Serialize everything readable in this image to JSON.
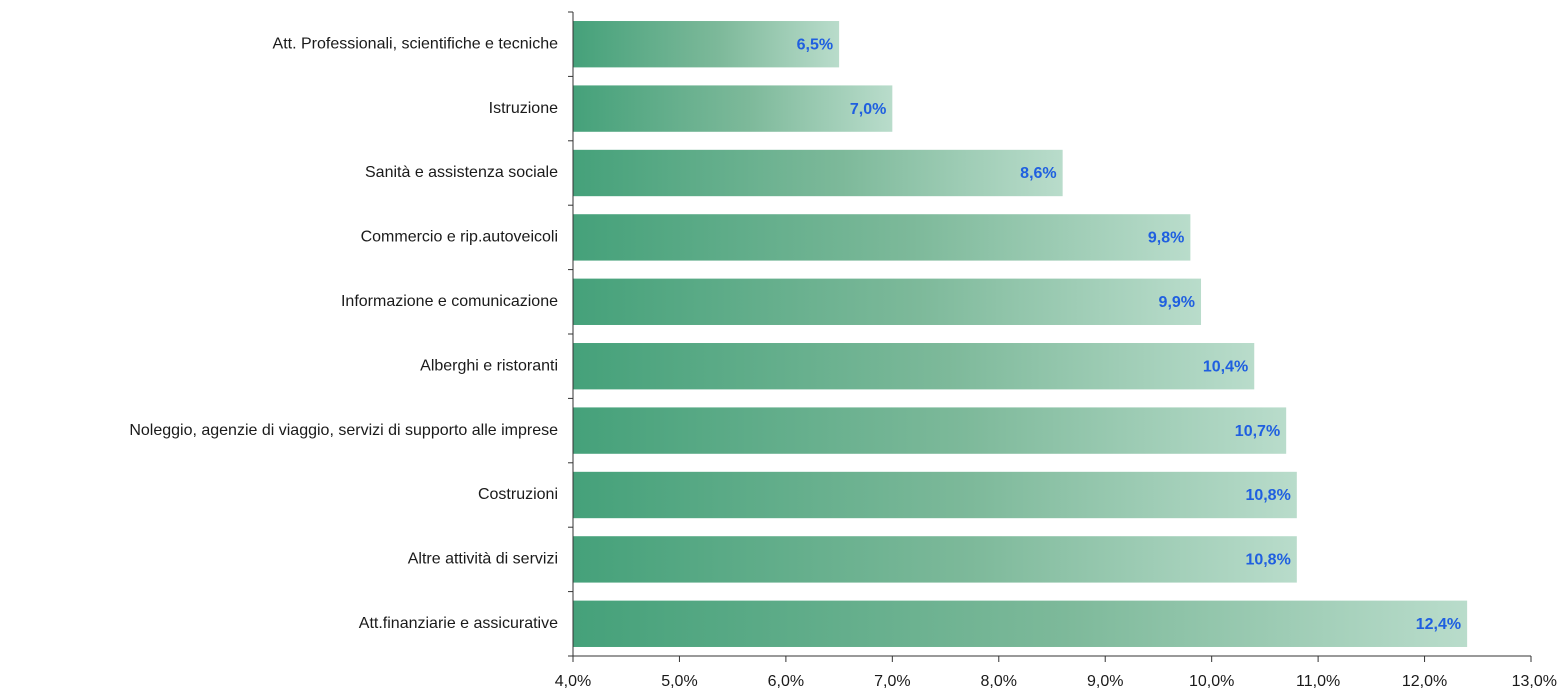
{
  "chart_data": {
    "type": "bar",
    "orientation": "horizontal",
    "categories": [
      "Att. Professionali, scientifiche e tecniche",
      "Istruzione",
      "Sanità e assistenza sociale",
      "Commercio e rip.autoveicoli",
      "Informazione e comunicazione",
      "Alberghi e ristoranti",
      "Noleggio, agenzie di viaggio, servizi di supporto alle imprese",
      "Costruzioni",
      "Altre attività di servizi",
      "Att.finanziarie e assicurative"
    ],
    "values": [
      6.5,
      7.0,
      8.6,
      9.8,
      9.9,
      10.4,
      10.7,
      10.8,
      10.8,
      12.4
    ],
    "data_labels": [
      "6,5%",
      "7,0%",
      "8,6%",
      "9,8%",
      "9,9%",
      "10,4%",
      "10,7%",
      "10,8%",
      "10,8%",
      "12,4%"
    ],
    "xlim": [
      4.0,
      13.0
    ],
    "x_ticks": [
      4,
      5,
      6,
      7,
      8,
      9,
      10,
      11,
      12,
      13
    ],
    "x_tick_labels": [
      "4,0%",
      "5,0%",
      "6,0%",
      "7,0%",
      "8,0%",
      "9,0%",
      "10,0%",
      "11,0%",
      "12,0%",
      "13,0%"
    ],
    "title": "",
    "xlabel": "",
    "ylabel": "",
    "grid": false,
    "legend": "none",
    "colors": {
      "bar_start": "#45a17a",
      "bar_mid": "#7db99a",
      "bar_end": "#b9dccb",
      "data_label": "#1f5fe0",
      "axis": "#333333",
      "text": "#1a1a1a"
    }
  }
}
